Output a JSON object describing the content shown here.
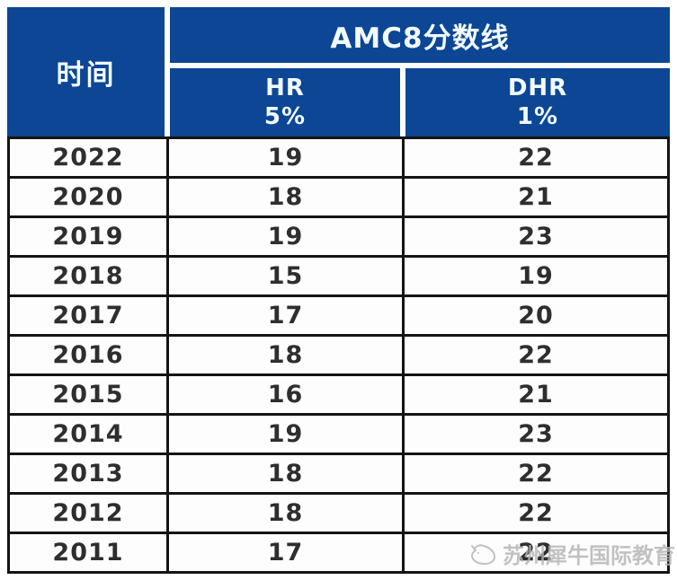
{
  "colors": {
    "header_bg": "#0c4695",
    "header_text": "#f2fbff",
    "body_bg": "#fdfdfd",
    "body_text": "#2e2e2e",
    "grid_border": "#141414",
    "watermark_gray": "#b3b3b3"
  },
  "chart_data": {
    "type": "table",
    "title": "AMC8分数线",
    "row_header_label": "时间",
    "columns": [
      {
        "label": "HR",
        "percent": "5%"
      },
      {
        "label": "DHR",
        "percent": "1%"
      }
    ],
    "rows": [
      {
        "year": "2022",
        "HR": "19",
        "DHR": "22"
      },
      {
        "year": "2020",
        "HR": "18",
        "DHR": "21"
      },
      {
        "year": "2019",
        "HR": "19",
        "DHR": "23"
      },
      {
        "year": "2018",
        "HR": "15",
        "DHR": "19"
      },
      {
        "year": "2017",
        "HR": "17",
        "DHR": "20"
      },
      {
        "year": "2016",
        "HR": "18",
        "DHR": "22"
      },
      {
        "year": "2015",
        "HR": "16",
        "DHR": "21"
      },
      {
        "year": "2014",
        "HR": "19",
        "DHR": "23"
      },
      {
        "year": "2013",
        "HR": "18",
        "DHR": "22"
      },
      {
        "year": "2012",
        "HR": "18",
        "DHR": "22"
      },
      {
        "year": "2011",
        "HR": "17",
        "DHR": "22"
      }
    ]
  },
  "watermark": {
    "text": "苏州犀牛国际教育",
    "icon": "rhino-logo"
  }
}
